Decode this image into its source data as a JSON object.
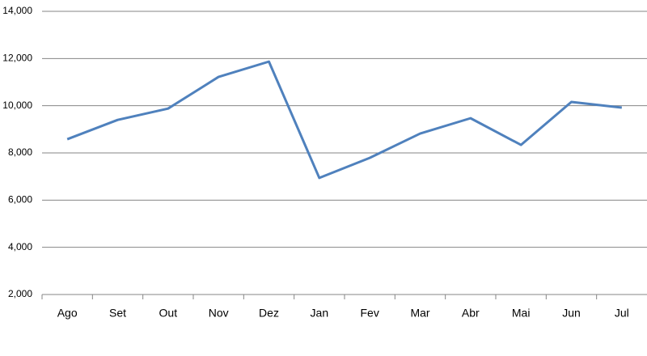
{
  "chart_data": {
    "type": "line",
    "categories": [
      "Ago",
      "Set",
      "Out",
      "Nov",
      "Dez",
      "Jan",
      "Fev",
      "Mar",
      "Abr",
      "Mai",
      "Jun",
      "Jul"
    ],
    "series": [
      {
        "color": "#4f81bd",
        "values": [
          8580,
          9400,
          9880,
          11220,
          11870,
          6940,
          7790,
          8820,
          9470,
          8340,
          10160,
          9920
        ]
      }
    ],
    "ylim": [
      2000,
      14000
    ],
    "yticks": [
      {
        "value": 2000,
        "label": "2,000"
      },
      {
        "value": 4000,
        "label": "4,000"
      },
      {
        "value": 6000,
        "label": "6,000"
      },
      {
        "value": 8000,
        "label": "8,000"
      },
      {
        "value": 10000,
        "label": "10,000"
      },
      {
        "value": 12000,
        "label": "12,000"
      },
      {
        "value": 14000,
        "label": "14,000"
      }
    ],
    "grid": true
  }
}
